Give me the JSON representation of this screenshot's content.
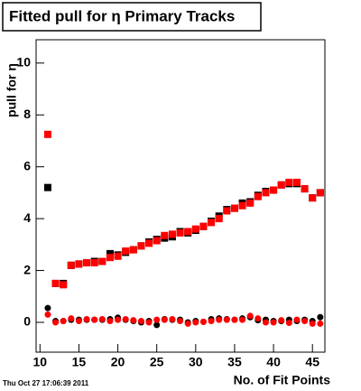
{
  "chart_data": {
    "type": "scatter",
    "title": "Fitted pull for  η Primary Tracks",
    "y_label": "pull for η",
    "x_label": "No. of Fit Points",
    "timestamp": "Thu Oct 27 17:06:39 2011",
    "x": [
      11,
      12,
      13,
      14,
      15,
      16,
      17,
      18,
      19,
      20,
      21,
      22,
      23,
      24,
      25,
      26,
      27,
      28,
      29,
      30,
      31,
      32,
      33,
      34,
      35,
      36,
      37,
      38,
      39,
      40,
      41,
      42,
      43,
      44,
      45,
      46
    ],
    "series": [
      {
        "color": "#000000",
        "marker": "square",
        "values": [
          5.2,
          1.5,
          1.5,
          2.2,
          2.25,
          2.3,
          2.35,
          2.35,
          2.65,
          2.6,
          2.7,
          2.8,
          2.95,
          3.1,
          3.2,
          3.25,
          3.3,
          3.5,
          3.45,
          3.55,
          3.7,
          3.9,
          4.1,
          4.35,
          4.4,
          4.6,
          4.65,
          4.9,
          5.05,
          5.1,
          5.3,
          5.35,
          5.35,
          5.15,
          4.8,
          5.0
        ]
      },
      {
        "color": "#ff0000",
        "marker": "square",
        "values": [
          7.25,
          1.5,
          1.45,
          2.2,
          2.25,
          2.3,
          2.3,
          2.35,
          2.5,
          2.55,
          2.75,
          2.8,
          2.95,
          3.05,
          3.15,
          3.35,
          3.4,
          3.45,
          3.5,
          3.6,
          3.7,
          3.85,
          4.0,
          4.3,
          4.4,
          4.5,
          4.6,
          4.85,
          5.0,
          5.1,
          5.3,
          5.4,
          5.4,
          5.15,
          4.8,
          5.0
        ]
      },
      {
        "color": "#000000",
        "marker": "circle",
        "values": [
          0.55,
          0.05,
          0.05,
          0.1,
          0.1,
          0.1,
          0.1,
          0.1,
          0.12,
          0.18,
          0.1,
          0.05,
          0.0,
          0.05,
          -0.1,
          0.12,
          0.1,
          0.1,
          0.0,
          0.05,
          0.02,
          0.12,
          0.15,
          0.12,
          0.1,
          0.15,
          0.2,
          0.08,
          0.1,
          0.05,
          0.05,
          0.1,
          0.05,
          0.1,
          0.05,
          0.2
        ]
      },
      {
        "color": "#ff0000",
        "marker": "circle",
        "values": [
          0.3,
          0.0,
          0.05,
          0.15,
          0.05,
          0.12,
          0.1,
          0.12,
          0.05,
          0.1,
          0.12,
          0.08,
          0.05,
          0.0,
          0.1,
          0.1,
          0.12,
          0.05,
          -0.05,
          0.0,
          0.02,
          0.05,
          0.1,
          0.1,
          0.1,
          0.1,
          0.25,
          0.15,
          0.0,
          0.0,
          0.08,
          -0.02,
          0.1,
          0.05,
          -0.05,
          -0.05
        ]
      }
    ],
    "xlim": [
      9.5,
      46.6
    ],
    "xticks": [
      10,
      15,
      20,
      25,
      30,
      35,
      40,
      45
    ],
    "ylim": [
      -1.15,
      10.9
    ],
    "yticks": [
      0,
      2,
      4,
      6,
      8,
      10
    ]
  }
}
